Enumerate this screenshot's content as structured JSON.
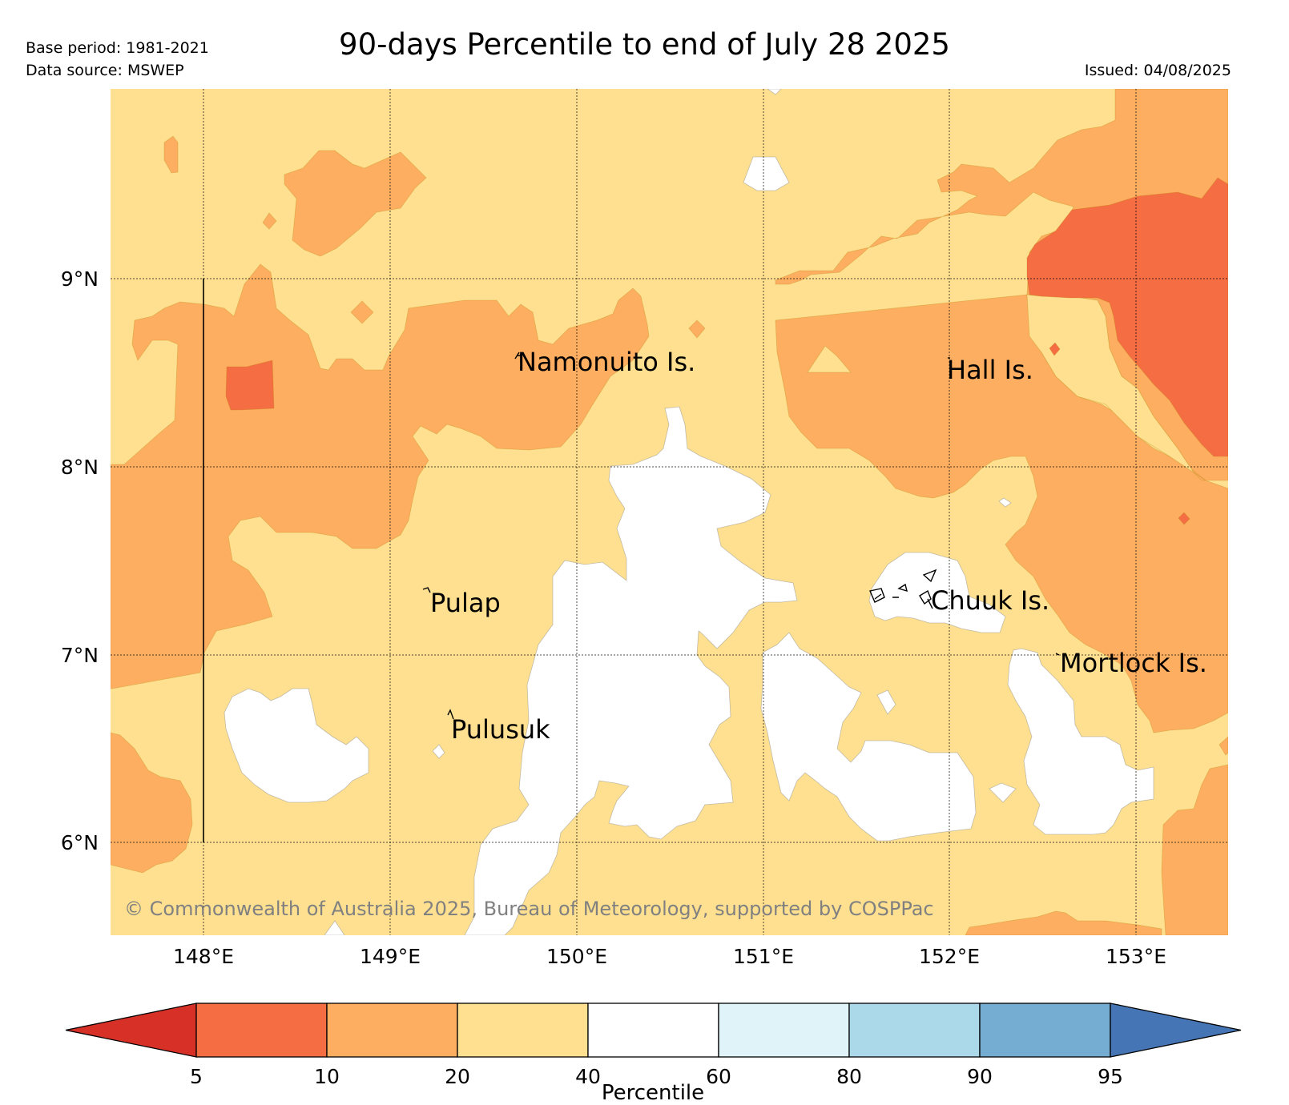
{
  "header": {
    "title": "90-days Percentile to end of July 28 2025",
    "base_period": "Base period: 1981-2021",
    "data_source": "Data source: MSWEP",
    "issued": "Issued: 04/08/2025"
  },
  "map": {
    "longitude_range": [
      147.5,
      153.5
    ],
    "latitude_range": [
      5.5,
      10.0
    ],
    "lon_ticks": [
      "148°E",
      "149°E",
      "150°E",
      "151°E",
      "152°E",
      "153°E"
    ],
    "lat_ticks": [
      "9°N",
      "8°N",
      "7°N",
      "6°N"
    ],
    "places": [
      {
        "name": "Namonuito Is.",
        "lon": 149.6,
        "lat": 8.6
      },
      {
        "name": "Hall Is.",
        "lon": 151.98,
        "lat": 8.55
      },
      {
        "name": "Pulap",
        "lon": 149.25,
        "lat": 7.3
      },
      {
        "name": "Chuuk Is.",
        "lon": 151.75,
        "lat": 7.4
      },
      {
        "name": "Mortlock Is.",
        "lon": 152.55,
        "lat": 7.0
      },
      {
        "name": "Pulusuk",
        "lon": 149.32,
        "lat": 6.67
      }
    ],
    "copyright": "© Commonwealth of Australia 2025, Bureau of Meteorology, supported by COSPPac"
  },
  "legend": {
    "title": "Percentile",
    "tick_labels": [
      "5",
      "10",
      "20",
      "40",
      "60",
      "80",
      "90",
      "95"
    ],
    "classes": [
      {
        "range": "<5",
        "color": "#d73027"
      },
      {
        "range": "5-10",
        "color": "#f46d43"
      },
      {
        "range": "10-20",
        "color": "#fdae61"
      },
      {
        "range": "20-40",
        "color": "#fee090"
      },
      {
        "range": "40-60",
        "color": "#ffffff"
      },
      {
        "range": "60-80",
        "color": "#e0f3f8"
      },
      {
        "range": "80-90",
        "color": "#abd9e9"
      },
      {
        "range": "90-95",
        "color": "#74add1"
      },
      {
        "range": ">95",
        "color": "#4575b4"
      }
    ]
  }
}
